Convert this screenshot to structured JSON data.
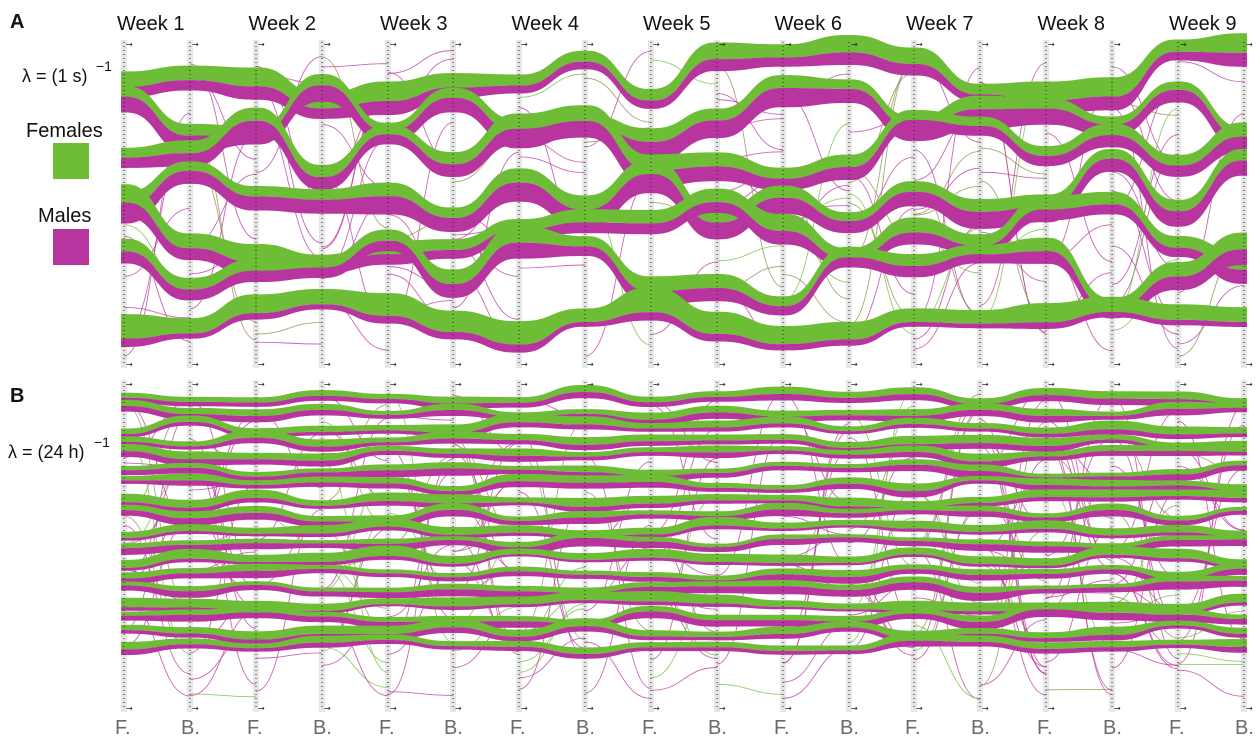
{
  "colors": {
    "female": "#6dbd37",
    "male": "#b8349f",
    "mixed": "#8f8a4a",
    "axis_band": "#e6e6e6",
    "axis_line": "#222222",
    "label_gray": "#6a6a6a"
  },
  "weeks": [
    "Week 1",
    "Week 2",
    "Week 3",
    "Week 4",
    "Week 5",
    "Week 6",
    "Week 7",
    "Week 8",
    "Week 9"
  ],
  "axis_labels": [
    "F.",
    "B.",
    "F.",
    "B.",
    "F.",
    "B.",
    "F.",
    "B.",
    "F.",
    "B.",
    "F.",
    "B.",
    "F.",
    "B.",
    "F.",
    "B.",
    "F.",
    "B."
  ],
  "legend": {
    "females": "Females",
    "males": "Males"
  },
  "panels": [
    {
      "letter": "A",
      "rate_prefix": "λ = (1 s)",
      "rate_exp": "−1"
    },
    {
      "letter": "B",
      "rate_prefix": "λ = (24 h)",
      "rate_exp": "−1"
    }
  ]
}
